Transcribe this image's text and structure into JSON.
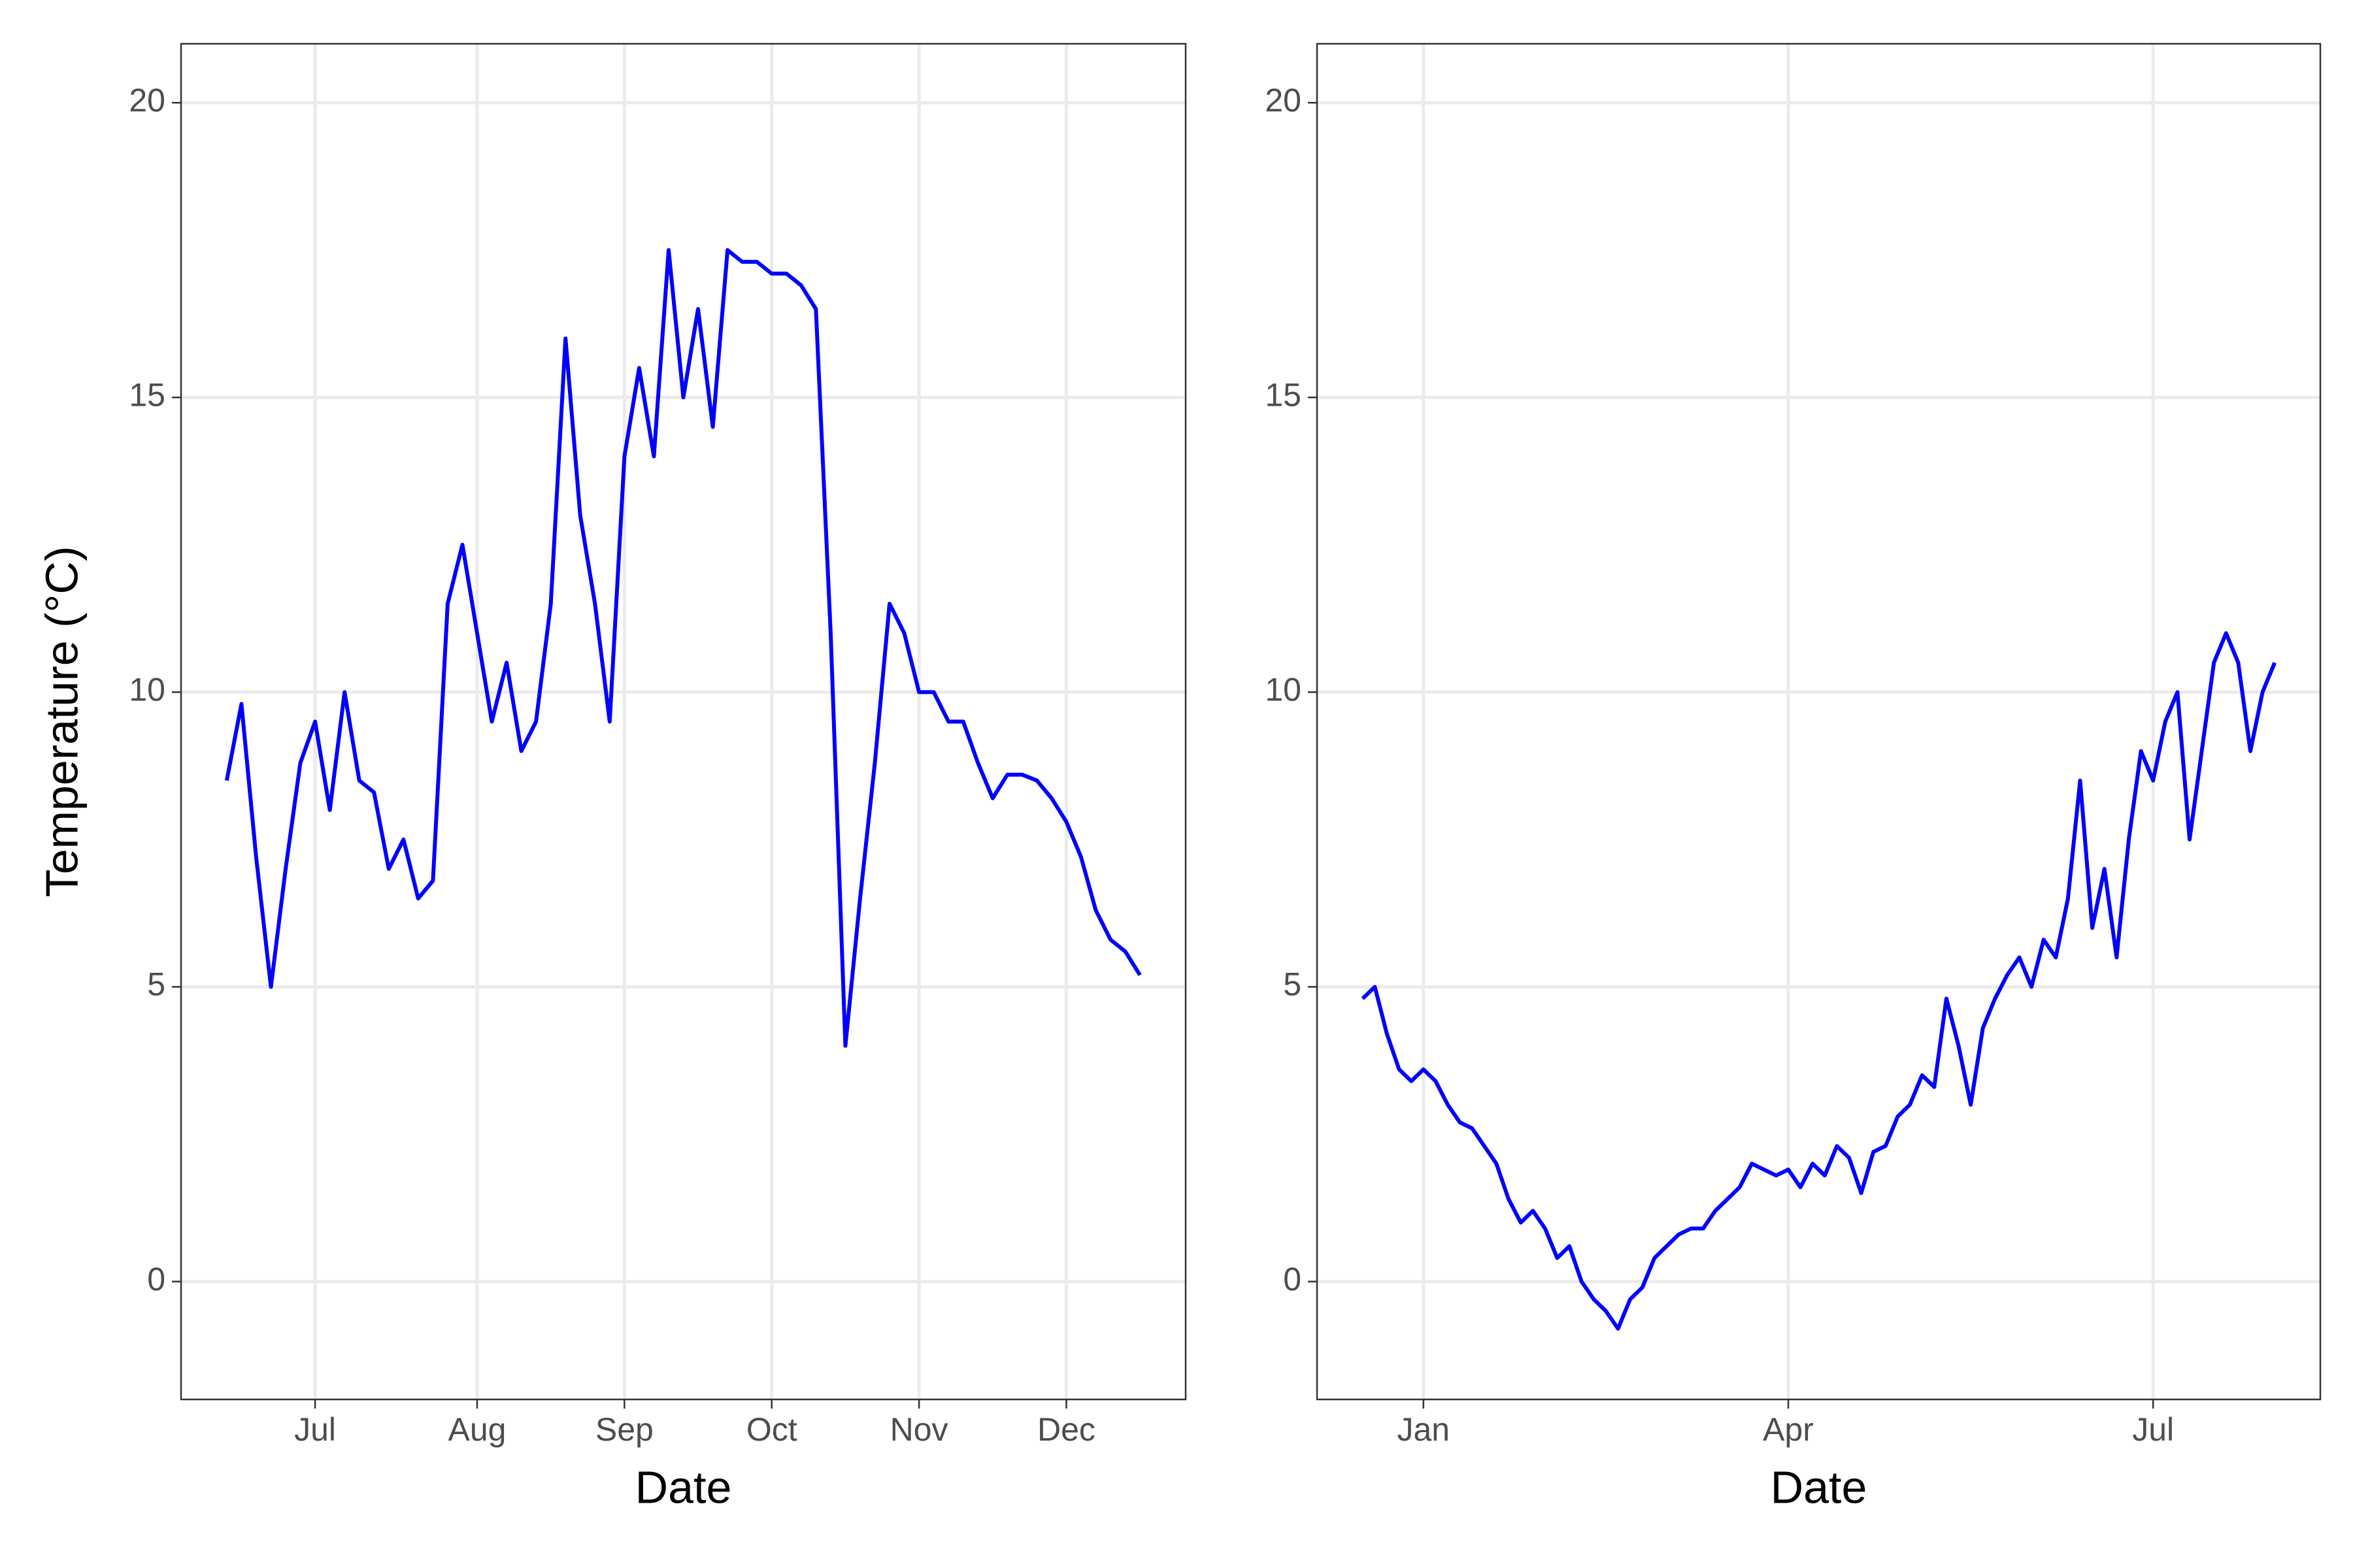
{
  "chart_data": [
    {
      "type": "line",
      "xlabel": "Date",
      "ylabel": "Temperature (°C)",
      "categories": [
        null,
        null,
        null,
        null,
        null,
        null,
        "Jul",
        null,
        null,
        null,
        null,
        null,
        null,
        null,
        null,
        null,
        null,
        "Aug",
        null,
        null,
        null,
        null,
        null,
        null,
        null,
        null,
        null,
        "Sep",
        null,
        null,
        null,
        null,
        null,
        null,
        null,
        null,
        null,
        "Oct",
        null,
        null,
        null,
        null,
        null,
        null,
        null,
        null,
        null,
        "Nov",
        null,
        null,
        null,
        null,
        null,
        null,
        null,
        null,
        null,
        "Dec",
        null,
        null,
        null,
        null,
        null
      ],
      "values": [
        8.5,
        9.8,
        7.2,
        5.0,
        7.0,
        8.8,
        9.5,
        8.0,
        10.0,
        8.5,
        8.3,
        7.0,
        7.5,
        6.5,
        6.8,
        11.5,
        12.5,
        11.0,
        9.5,
        10.5,
        9.0,
        9.5,
        11.5,
        16.0,
        13.0,
        11.5,
        9.5,
        14.0,
        15.5,
        14.0,
        17.5,
        15.0,
        16.5,
        14.5,
        17.5,
        17.3,
        17.3,
        17.1,
        17.1,
        16.9,
        16.5,
        11.0,
        4.0,
        6.5,
        8.8,
        11.5,
        11.0,
        10.0,
        10.0,
        9.5,
        9.5,
        8.8,
        8.2,
        8.6,
        8.6,
        8.5,
        8.2,
        7.8,
        7.2,
        6.3,
        5.8,
        5.6,
        5.2
      ],
      "color": "#0000ff",
      "ylim": [
        -2,
        21
      ],
      "yticks": [
        0,
        5,
        10,
        15,
        20
      ],
      "grid": true
    },
    {
      "type": "line",
      "xlabel": "Date",
      "categories": [
        null,
        null,
        null,
        null,
        null,
        "Jan",
        null,
        null,
        null,
        null,
        null,
        null,
        null,
        null,
        null,
        null,
        null,
        null,
        null,
        null,
        null,
        null,
        null,
        null,
        null,
        null,
        null,
        null,
        null,
        null,
        null,
        null,
        null,
        null,
        null,
        "Apr",
        null,
        null,
        null,
        null,
        null,
        null,
        null,
        null,
        null,
        null,
        null,
        null,
        null,
        null,
        null,
        null,
        null,
        null,
        null,
        null,
        null,
        null,
        null,
        null,
        null,
        null,
        null,
        null,
        null,
        "Jul",
        null,
        null,
        null,
        null,
        null,
        null,
        null,
        null,
        null,
        null
      ],
      "values": [
        4.8,
        5.0,
        4.2,
        3.6,
        3.4,
        3.6,
        3.4,
        3.0,
        2.7,
        2.6,
        2.3,
        2.0,
        1.4,
        1.0,
        1.2,
        0.9,
        0.4,
        0.6,
        0.0,
        -0.3,
        -0.5,
        -0.8,
        -0.3,
        -0.1,
        0.4,
        0.6,
        0.8,
        0.9,
        0.9,
        1.2,
        1.4,
        1.6,
        2.0,
        1.9,
        1.8,
        1.9,
        1.6,
        2.0,
        1.8,
        2.3,
        2.1,
        1.5,
        2.2,
        2.3,
        2.8,
        3.0,
        3.5,
        3.3,
        4.8,
        4.0,
        3.0,
        4.3,
        4.8,
        5.2,
        5.5,
        5.0,
        5.8,
        5.5,
        6.5,
        8.5,
        6.0,
        7.0,
        5.5,
        7.5,
        9.0,
        8.5,
        9.5,
        10.0,
        7.5,
        9.0,
        10.5,
        11.0,
        10.5,
        9.0,
        10.0,
        10.5
      ],
      "color": "#0000ff",
      "ylim": [
        -2,
        21
      ],
      "yticks": [
        0,
        5,
        10,
        15,
        20
      ],
      "grid": true
    }
  ]
}
